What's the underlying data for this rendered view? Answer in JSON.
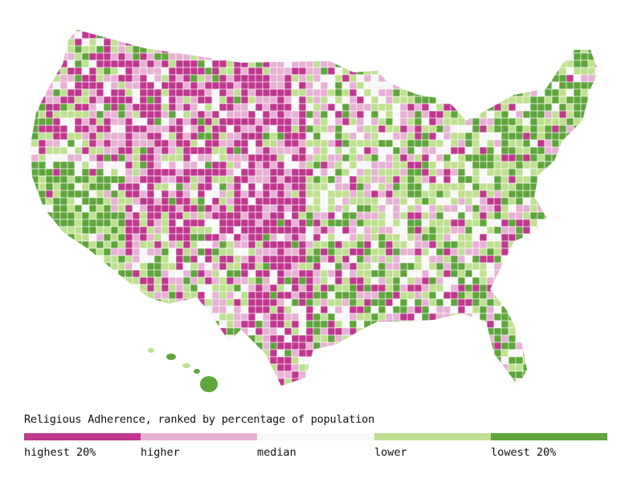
{
  "legend": {
    "title": "Religious Adherence, ranked by percentage of population",
    "categories": [
      {
        "label": "highest 20%",
        "color": "#c0378e"
      },
      {
        "label": "higher",
        "color": "#e7b1d4"
      },
      {
        "label": "median",
        "color": "#f7f7f7"
      },
      {
        "label": "lower",
        "color": "#bfe090"
      },
      {
        "label": "lowest 20%",
        "color": "#5fa53c"
      }
    ]
  },
  "map": {
    "type": "choropleth",
    "region": "United States counties",
    "border_color": "#ffffff"
  }
}
